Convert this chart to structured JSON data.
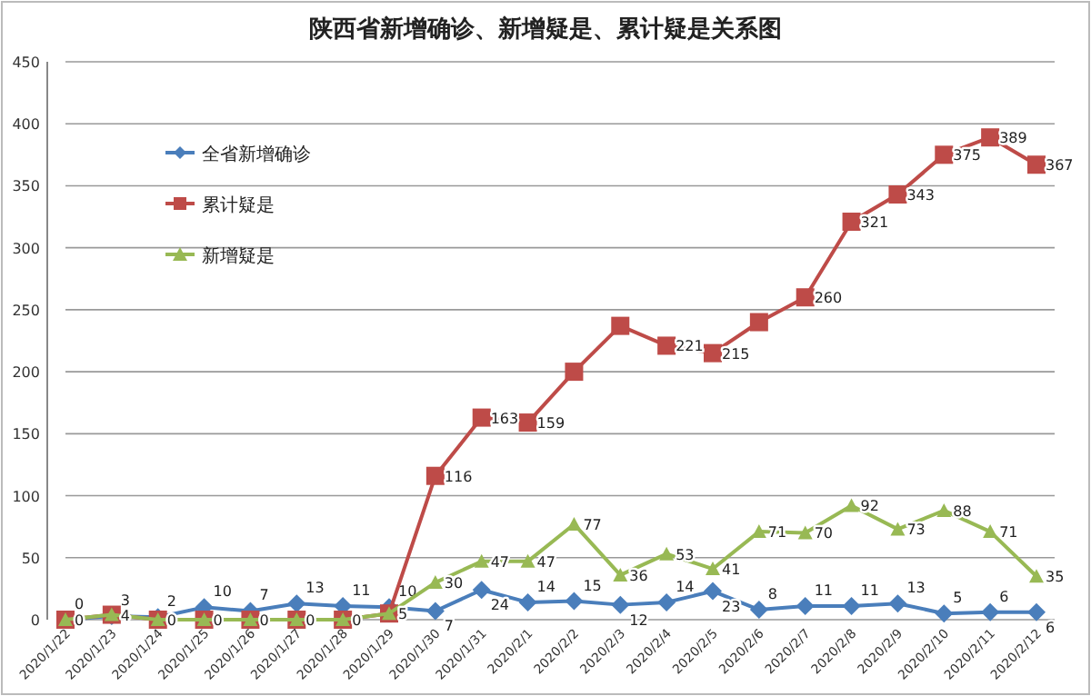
{
  "chart_data": {
    "type": "line",
    "title": "陕西省新增确诊、新增疑是、累计疑是关系图",
    "categories": [
      "2020/1/22",
      "2020/1/23",
      "2020/1/24",
      "2020/1/25",
      "2020/1/26",
      "2020/1/27",
      "2020/1/28",
      "2020/1/29",
      "2020/1/30",
      "2020/1/31",
      "2020/2/1",
      "2020/2/2",
      "2020/2/3",
      "2020/2/4",
      "2020/2/5",
      "2020/2/6",
      "2020/2/7",
      "2020/2/8",
      "2020/2/9",
      "2020/2/10",
      "2020/2/11",
      "2020/2/12"
    ],
    "series": [
      {
        "name": "全省新增确诊",
        "color": "#4a7ebb",
        "marker": "diamond",
        "values": [
          0,
          3,
          2,
          10,
          7,
          13,
          11,
          10,
          7,
          24,
          14,
          15,
          12,
          14,
          23,
          8,
          11,
          11,
          13,
          5,
          6,
          6
        ],
        "value_labels": [
          "0",
          "3",
          "2",
          "10",
          "7",
          "13",
          "11",
          "10",
          "7",
          "24",
          "14",
          "15",
          "12",
          "14",
          "23",
          "8",
          "11",
          "11",
          "13",
          "5",
          "6",
          "6"
        ]
      },
      {
        "name": "累计疑是",
        "color": "#be4b48",
        "marker": "square",
        "values": [
          0,
          4,
          0,
          0,
          0,
          0,
          0,
          5,
          116,
          163,
          159,
          200,
          237,
          221,
          215,
          240,
          260,
          321,
          343,
          375,
          389,
          367
        ],
        "value_labels": [
          null,
          null,
          null,
          null,
          null,
          null,
          null,
          null,
          "116",
          "163",
          "159",
          null,
          null,
          "221",
          "215",
          null,
          "260",
          "321",
          "343",
          "375",
          "389",
          "367"
        ]
      },
      {
        "name": "新增疑是",
        "color": "#98b954",
        "marker": "triangle",
        "values": [
          0,
          4,
          0,
          0,
          0,
          0,
          0,
          5,
          30,
          47,
          47,
          77,
          36,
          53,
          41,
          71,
          70,
          92,
          73,
          88,
          71,
          35
        ],
        "value_labels": [
          "0",
          "4",
          "0",
          "0",
          "0",
          "0",
          "0",
          "5",
          "30",
          "47",
          "47",
          "77",
          "36",
          "53",
          "41",
          "71",
          "70",
          "92",
          "73",
          "88",
          "71",
          "35"
        ]
      }
    ],
    "ylim": [
      0,
      450
    ],
    "yticks": [
      0,
      50,
      100,
      150,
      200,
      250,
      300,
      350,
      400,
      450
    ],
    "grid": "y",
    "legend": "top left",
    "line_style": "solid"
  }
}
